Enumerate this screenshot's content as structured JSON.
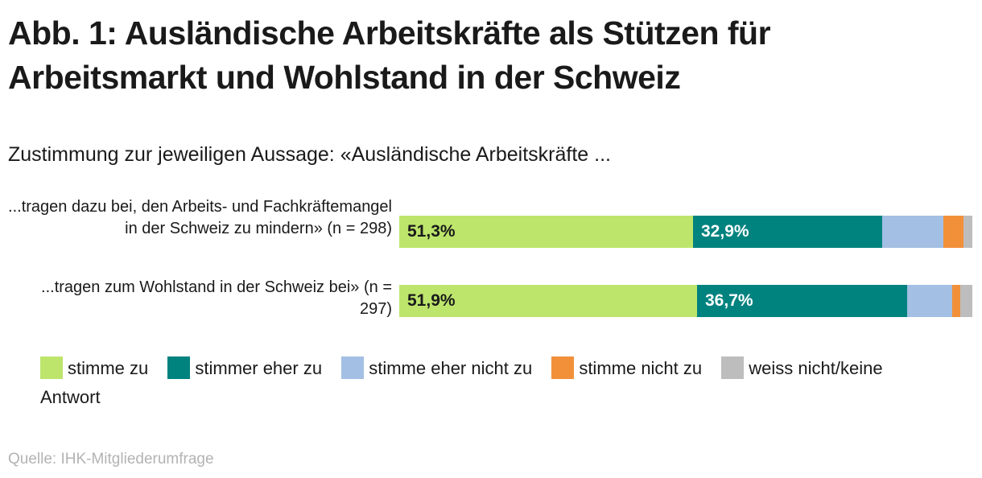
{
  "title": "Abb. 1: Ausländische Arbeitskräfte als Stützen für Arbeitsmarkt und Wohlstand in der Schweiz",
  "subtitle": "Zustimmung zur jeweiligen Aussage: «Ausländische Arbeitskräfte ...",
  "source": "Quelle: IHK-Mitgliederumfrage",
  "colors": {
    "stimme_zu": "#bde56c",
    "eher_zu": "#00827f",
    "eher_nicht_zu": "#a3bfe3",
    "nicht_zu": "#f2903a",
    "weiss_nicht": "#bdbdbd"
  },
  "legend": {
    "items": [
      "stimme zu",
      "stimmer eher zu",
      "stimme eher nicht zu",
      "stimme nicht zu",
      "weiss nicht/keine Antwort"
    ]
  },
  "chart_data": {
    "type": "bar",
    "orientation": "horizontal",
    "stacked": true,
    "title": "Abb. 1: Ausländische Arbeitskräfte als Stützen für Arbeitsmarkt und Wohlstand in der Schweiz",
    "subtitle": "Zustimmung zur jeweiligen Aussage: «Ausländische Arbeitskräfte ...",
    "xlim": [
      0,
      100
    ],
    "categories": [
      "...tragen dazu bei, den Arbeits- und Fachkräftemangel in der Schweiz zu mindern» (n = 298)",
      "...tragen zum Wohlstand in der Schweiz bei» (n = 297)"
    ],
    "series": [
      {
        "name": "stimme zu",
        "values": [
          51.3,
          51.9
        ],
        "labels": [
          "51,3%",
          "51,9%"
        ]
      },
      {
        "name": "stimmer eher zu",
        "values": [
          32.9,
          36.7
        ],
        "labels": [
          "32,9%",
          "36,7%"
        ]
      },
      {
        "name": "stimme eher nicht zu",
        "values": [
          10.7,
          7.9
        ]
      },
      {
        "name": "stimme nicht zu",
        "values": [
          3.6,
          1.4
        ]
      },
      {
        "name": "weiss nicht/keine Antwort",
        "values": [
          1.5,
          2.1
        ]
      }
    ]
  }
}
